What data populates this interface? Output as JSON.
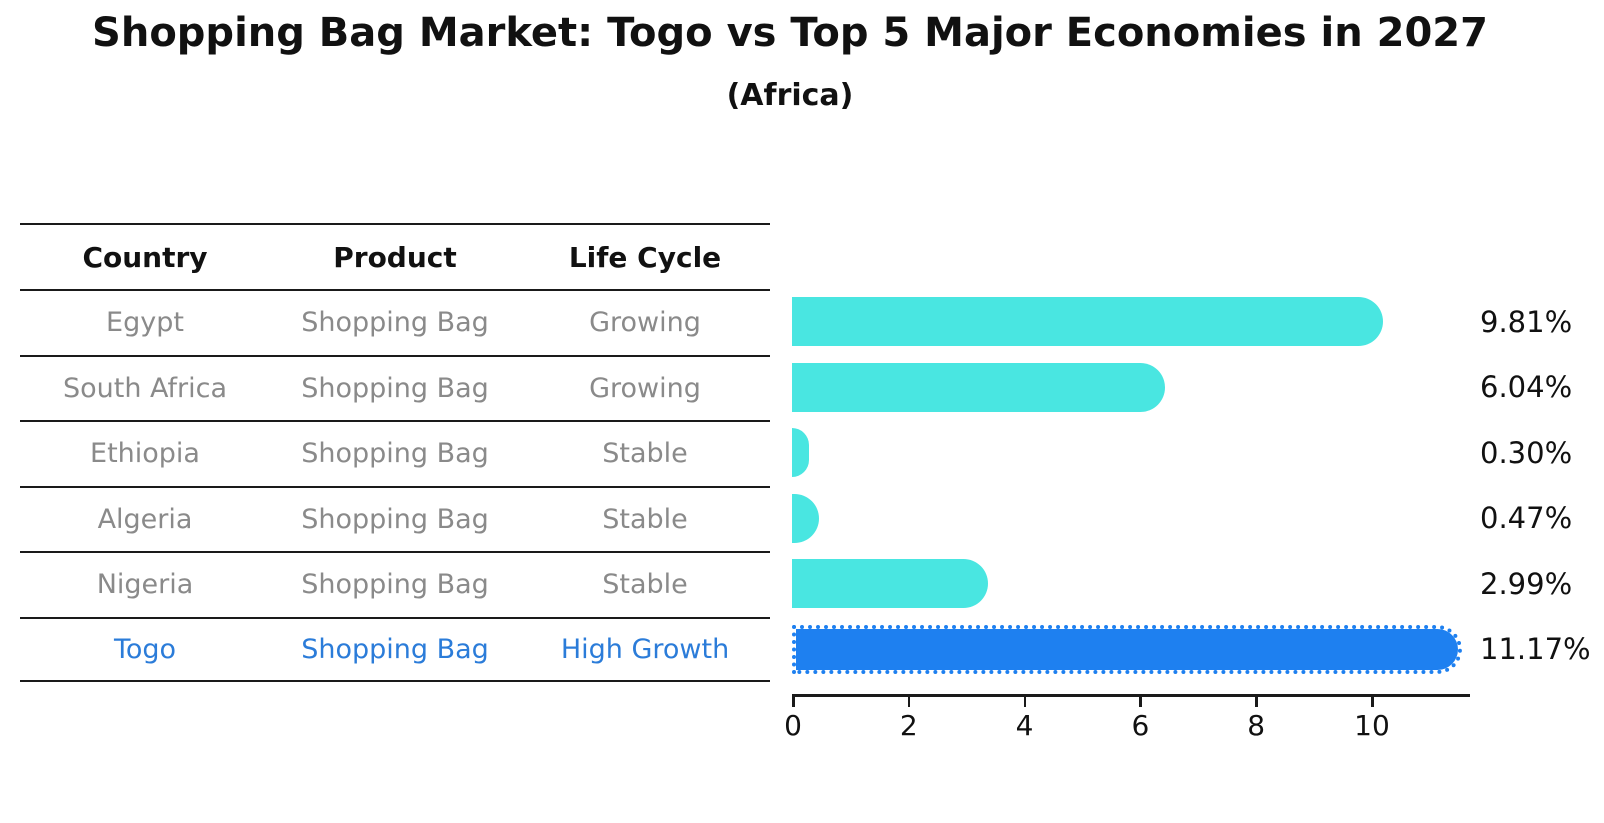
{
  "title": "Shopping Bag Market: Togo vs Top 5 Major Economies in 2027",
  "subtitle": "(Africa)",
  "table": {
    "headers": [
      "Country",
      "Product",
      "Life Cycle"
    ],
    "rows": [
      {
        "country": "Egypt",
        "product": "Shopping Bag",
        "life_cycle": "Growing",
        "highlight": false
      },
      {
        "country": "South Africa",
        "product": "Shopping Bag",
        "life_cycle": "Growing",
        "highlight": false
      },
      {
        "country": "Ethiopia",
        "product": "Shopping Bag",
        "life_cycle": "Stable",
        "highlight": false
      },
      {
        "country": "Algeria",
        "product": "Shopping Bag",
        "life_cycle": "Stable",
        "highlight": false
      },
      {
        "country": "Nigeria",
        "product": "Shopping Bag",
        "life_cycle": "Stable",
        "highlight": false
      },
      {
        "country": "Togo",
        "product": "Shopping Bag",
        "life_cycle": "High Growth",
        "highlight": true
      }
    ]
  },
  "chart_data": {
    "type": "bar",
    "orientation": "horizontal",
    "title": "Shopping Bag Market: Togo vs Top 5 Major Economies in 2027",
    "subtitle": "(Africa)",
    "categories": [
      "Egypt",
      "South Africa",
      "Ethiopia",
      "Algeria",
      "Nigeria",
      "Togo"
    ],
    "values": [
      9.81,
      6.04,
      0.3,
      0.47,
      2.99,
      11.17
    ],
    "value_labels": [
      "9.81%",
      "6.04%",
      "0.30%",
      "0.47%",
      "2.99%",
      "11.17%"
    ],
    "xlabel": "",
    "ylabel": "",
    "xlim": [
      0,
      11.68
    ],
    "xticks": [
      "0",
      "2",
      "4",
      "6",
      "8",
      "10"
    ],
    "grid": false,
    "legend": false,
    "highlight_index": 5,
    "bar_color": "#49e6e1",
    "highlight_bar_color": "#1e80f0",
    "highlight_text_color": "#2b7cd9",
    "text_color": "#8a8a8a"
  }
}
